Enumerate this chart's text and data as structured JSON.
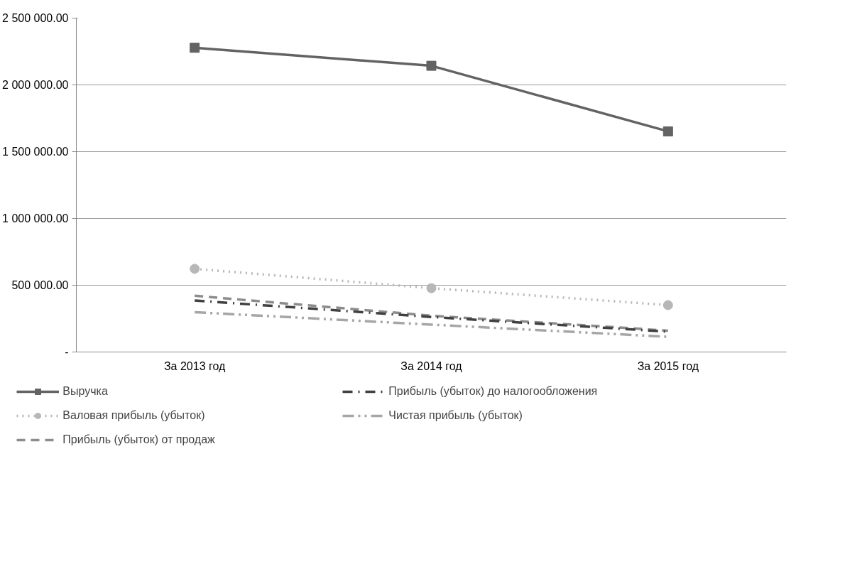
{
  "chart_data": {
    "type": "line",
    "categories": [
      "За 2013 год",
      "За 2014 год",
      "За 2015 год"
    ],
    "series": [
      {
        "name": "Выручка",
        "color": "#636363",
        "marker": "square",
        "line_style": "solid",
        "values": [
          2278000,
          2143000,
          1652000
        ]
      },
      {
        "name": "Валовая прибыль (убыток)",
        "color": "#b7b7b7",
        "marker": "circle",
        "line_style": "dotted",
        "values": [
          623000,
          478000,
          351000
        ]
      },
      {
        "name": "Прибыль (убыток) от продаж",
        "color": "#8c8c8c",
        "marker": "none",
        "line_style": "dashed",
        "values": [
          421000,
          272000,
          160000
        ]
      },
      {
        "name": "Прибыль (убыток) до налогообложения",
        "color": "#404040",
        "marker": "none",
        "line_style": "dashdot",
        "values": [
          386000,
          262000,
          152000
        ]
      },
      {
        "name": "Чистая прибыль (убыток)",
        "color": "#a6a6a6",
        "marker": "none",
        "line_style": "dashdotdot",
        "values": [
          298000,
          205000,
          114000
        ]
      }
    ],
    "ylim": [
      0,
      2500000
    ],
    "yticks": [
      {
        "value": 0,
        "label": "-"
      },
      {
        "value": 500000,
        "label": "500 000.00"
      },
      {
        "value": 1000000,
        "label": "1 000 000.00"
      },
      {
        "value": 1500000,
        "label": "1 500 000.00"
      },
      {
        "value": 2000000,
        "label": "2 000 000.00"
      },
      {
        "value": 2500000,
        "label": "2 500 000.00"
      }
    ],
    "grid": "y",
    "legend": "bottom"
  }
}
